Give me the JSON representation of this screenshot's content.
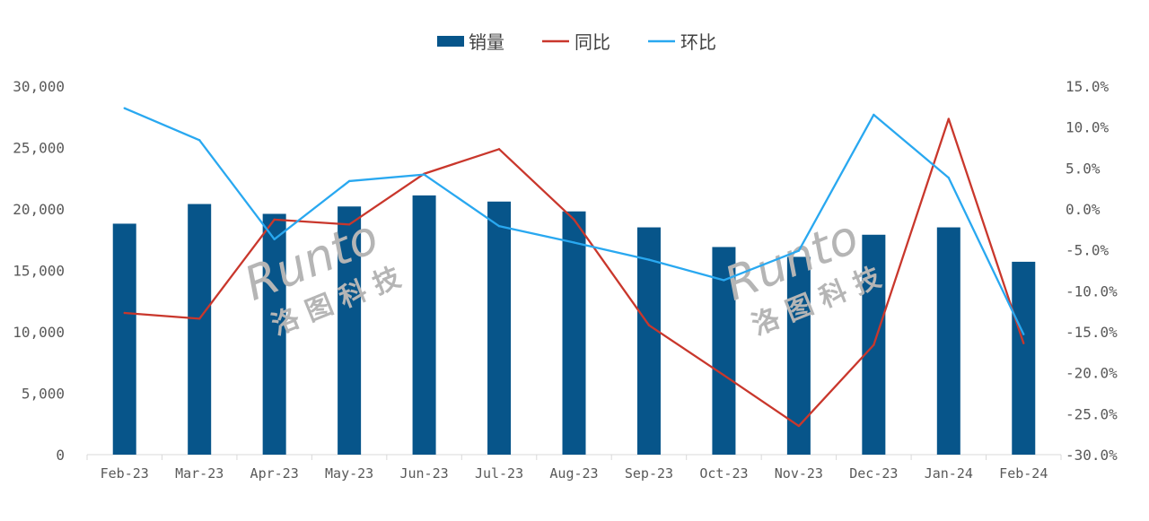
{
  "chart_data": {
    "type": "bar",
    "categories": [
      "Feb-23",
      "Mar-23",
      "Apr-23",
      "May-23",
      "Jun-23",
      "Jul-23",
      "Aug-23",
      "Sep-23",
      "Oct-23",
      "Nov-23",
      "Dec-23",
      "Jan-24",
      "Feb-24"
    ],
    "series": [
      {
        "name": "销量",
        "type": "bar",
        "axis": "left",
        "color": "#07558A",
        "values": [
          18800,
          20400,
          19600,
          20200,
          21100,
          20600,
          19800,
          18500,
          16900,
          16100,
          17900,
          18500,
          15700
        ]
      },
      {
        "name": "同比",
        "type": "line",
        "axis": "right",
        "color": "#C9372C",
        "values": [
          -12.7,
          -13.4,
          -1.3,
          -1.9,
          4.3,
          7.3,
          -1.3,
          -14.2,
          -20.3,
          -26.5,
          -16.6,
          11.0,
          -16.4
        ]
      },
      {
        "name": "环比",
        "type": "line",
        "axis": "right",
        "color": "#29A8F0",
        "values": [
          12.3,
          8.4,
          -3.7,
          3.4,
          4.2,
          -2.1,
          -4.1,
          -6.2,
          -8.7,
          -5.1,
          11.5,
          3.8,
          -15.3
        ]
      }
    ],
    "y_left": {
      "range": [
        0,
        30000
      ],
      "ticks": [
        "0",
        "5,000",
        "10,000",
        "15,000",
        "20,000",
        "25,000",
        "30,000"
      ]
    },
    "y_right": {
      "range": [
        -30,
        15
      ],
      "ticks": [
        "-30.0%",
        "-25.0%",
        "-20.0%",
        "-15.0%",
        "-10.0%",
        "-5.0%",
        "0.0%",
        "5.0%",
        "10.0%",
        "15.0%"
      ]
    },
    "legend_position": "top",
    "grid": false,
    "watermark": {
      "text": "Runto",
      "subtext": "洛 图 科 技"
    }
  }
}
